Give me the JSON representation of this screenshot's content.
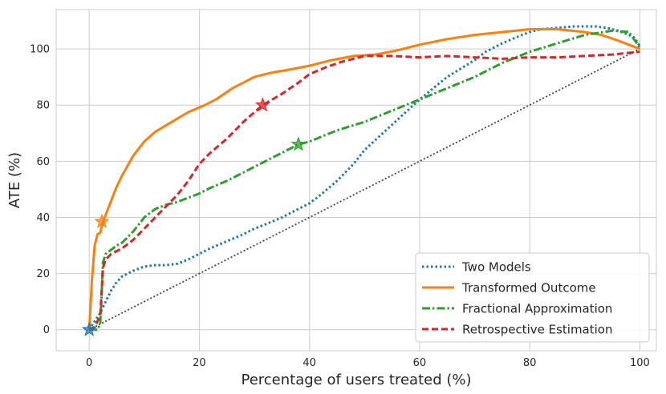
{
  "chart_data": {
    "type": "line",
    "title": "",
    "xlabel": "Percentage of users treated (%)",
    "ylabel": "ATE (%)",
    "xlim": [
      -6,
      103
    ],
    "ylim": [
      -7.5,
      114
    ],
    "xticks": [
      0,
      20,
      40,
      60,
      80,
      100
    ],
    "yticks": [
      0,
      20,
      40,
      60,
      80,
      100
    ],
    "grid": true,
    "legend_position": "bottom-right",
    "baseline": {
      "name": "random",
      "color": "#444444",
      "x": [
        0,
        100
      ],
      "y": [
        0,
        100
      ]
    },
    "series": [
      {
        "name": "Two Models",
        "color": "#1f77b4",
        "style": "dotted",
        "x": [
          0,
          1,
          2,
          3,
          4,
          5,
          6,
          7,
          8,
          10,
          12,
          14,
          16,
          18,
          20,
          22,
          25,
          28,
          30,
          32,
          35,
          38,
          40,
          42,
          45,
          48,
          50,
          55,
          60,
          65,
          70,
          72,
          75,
          78,
          80,
          82,
          85,
          88,
          90,
          92,
          94,
          96,
          98,
          99,
          100
        ],
        "y": [
          0,
          3,
          6,
          10,
          14,
          17,
          19,
          20,
          21,
          22.5,
          23,
          23,
          23.5,
          25,
          27,
          29,
          31.5,
          34,
          36,
          37.5,
          40,
          43,
          45,
          48,
          53,
          59,
          64,
          73,
          82,
          90,
          96,
          99,
          102,
          104.5,
          106,
          107,
          107.5,
          108,
          108,
          108,
          107.5,
          106.5,
          105,
          104,
          101
        ]
      },
      {
        "name": "Transformed Outcome",
        "color": "#ff7f0e",
        "style": "solid",
        "x": [
          0,
          0.5,
          1,
          1.5,
          2,
          2.5,
          3,
          4,
          5,
          6,
          8,
          10,
          12,
          15,
          18,
          21,
          23,
          26,
          28,
          30,
          33,
          36,
          40,
          44,
          48,
          52,
          56,
          60,
          65,
          70,
          75,
          80,
          85,
          90,
          93,
          96,
          98,
          100
        ],
        "y": [
          0,
          18,
          30,
          34,
          34.5,
          38.5,
          41,
          46,
          51,
          55,
          62,
          67,
          70.5,
          74,
          77.5,
          80,
          82,
          86,
          88,
          90,
          91.5,
          92.5,
          94,
          96,
          97.5,
          98,
          99.5,
          101.5,
          103.5,
          105,
          106,
          107,
          107,
          106,
          105,
          103,
          101.5,
          100
        ]
      },
      {
        "name": "Fractional Approximation",
        "color": "#2ca02c",
        "style": "dashdot",
        "x": [
          0,
          1.5,
          2,
          2.2,
          2.5,
          3,
          4,
          5,
          6,
          7,
          8,
          10,
          12,
          14,
          16,
          18,
          20,
          22,
          25,
          28,
          30,
          32,
          35,
          38,
          40,
          45,
          50,
          55,
          60,
          65,
          70,
          75,
          80,
          85,
          90,
          95,
          98,
          100
        ],
        "y": [
          0,
          0,
          2,
          10,
          24,
          27,
          28.5,
          30,
          31,
          33,
          35,
          40,
          43,
          44.5,
          45.5,
          47,
          48.5,
          50.5,
          53,
          56,
          58,
          60,
          63,
          66,
          67,
          71,
          74,
          78,
          82,
          86,
          90,
          95,
          99,
          102,
          105,
          106.5,
          106,
          100.5
        ]
      },
      {
        "name": "Retrospective Estimation",
        "color": "#d62728",
        "style": "dashed",
        "x": [
          0,
          1,
          2,
          2.3,
          2.5,
          3,
          4,
          6,
          8,
          10,
          12,
          14,
          16,
          18,
          20,
          22,
          25,
          28,
          31.5,
          35,
          38,
          40,
          43,
          46,
          50,
          55,
          60,
          65,
          70,
          75,
          80,
          85,
          90,
          95,
          100
        ],
        "y": [
          0,
          1,
          5,
          15,
          22,
          25,
          27,
          29,
          32,
          36,
          40,
          44,
          48,
          53,
          59,
          63,
          68,
          74,
          80,
          84,
          88,
          91,
          93.5,
          95.5,
          97.5,
          97.5,
          97,
          97.5,
          97,
          96.5,
          97,
          97,
          97.5,
          98,
          99
        ]
      }
    ],
    "markers": [
      {
        "series": "Two Models",
        "x": 0,
        "y": 0,
        "color": "#1f77b4"
      },
      {
        "series": "Transformed Outcome",
        "x": 2.3,
        "y": 38.5,
        "color": "#ff7f0e"
      },
      {
        "series": "Fractional Approximation",
        "x": 38,
        "y": 66,
        "color": "#2ca02c"
      },
      {
        "series": "Retrospective Estimation",
        "x": 31.5,
        "y": 80,
        "color": "#d62728"
      }
    ]
  }
}
